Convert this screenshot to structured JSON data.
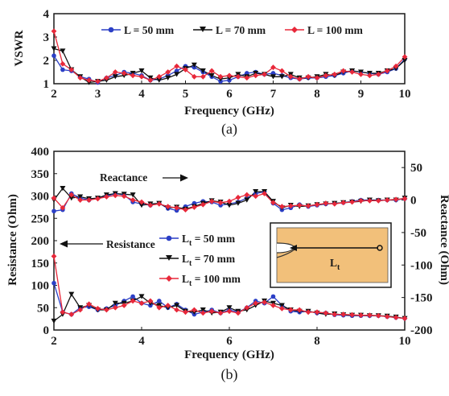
{
  "colors": {
    "blue": "#2b3fc6",
    "black": "#111111",
    "red": "#e8283a",
    "inset_fill": "#f2c07a"
  },
  "chart_data": [
    {
      "type": "line",
      "caption": "(a)",
      "xlabel": "Frequency (GHz)",
      "ylabel": "VSWR",
      "xlim": [
        2,
        10
      ],
      "ylim": [
        1,
        4
      ],
      "x_ticks": [
        "2",
        "3",
        "4",
        "5",
        "6",
        "7",
        "8",
        "9",
        "10"
      ],
      "y_ticks": [
        "1",
        "2",
        "3",
        "4"
      ],
      "legend_position": "top-center",
      "x": [
        2.0,
        2.2,
        2.4,
        2.6,
        2.8,
        3.0,
        3.2,
        3.4,
        3.6,
        3.8,
        4.0,
        4.2,
        4.4,
        4.6,
        4.8,
        5.0,
        5.2,
        5.4,
        5.6,
        5.8,
        6.0,
        6.2,
        6.4,
        6.6,
        6.8,
        7.0,
        7.2,
        7.4,
        7.6,
        7.8,
        8.0,
        8.2,
        8.4,
        8.6,
        8.8,
        9.0,
        9.2,
        9.4,
        9.6,
        9.8,
        10.0
      ],
      "series": [
        {
          "name": "L = 50 mm",
          "color": "#2b3fc6",
          "marker": "circle",
          "values": [
            2.2,
            1.6,
            1.55,
            1.3,
            1.2,
            1.05,
            1.25,
            1.35,
            1.5,
            1.45,
            1.35,
            1.15,
            1.2,
            1.35,
            1.55,
            1.75,
            1.7,
            1.5,
            1.3,
            1.1,
            1.15,
            1.3,
            1.45,
            1.5,
            1.4,
            1.45,
            1.35,
            1.25,
            1.2,
            1.25,
            1.25,
            1.3,
            1.35,
            1.45,
            1.55,
            1.5,
            1.45,
            1.4,
            1.5,
            1.65,
            2.05
          ]
        },
        {
          "name": "L = 70 mm",
          "color": "#111111",
          "marker": "triangle-down",
          "values": [
            2.5,
            2.4,
            1.6,
            1.3,
            1.05,
            1.1,
            1.15,
            1.3,
            1.35,
            1.45,
            1.55,
            1.25,
            1.15,
            1.25,
            1.4,
            1.65,
            1.8,
            1.55,
            1.35,
            1.2,
            1.25,
            1.4,
            1.3,
            1.45,
            1.4,
            1.3,
            1.3,
            1.4,
            1.25,
            1.25,
            1.3,
            1.4,
            1.35,
            1.5,
            1.55,
            1.5,
            1.45,
            1.45,
            1.55,
            1.65,
            2.0
          ]
        },
        {
          "name": "L = 100 mm",
          "color": "#e8283a",
          "marker": "diamond",
          "values": [
            3.25,
            1.85,
            1.6,
            1.25,
            1.15,
            1.1,
            1.25,
            1.5,
            1.45,
            1.35,
            1.3,
            1.15,
            1.3,
            1.5,
            1.75,
            1.6,
            1.3,
            1.3,
            1.55,
            1.3,
            1.35,
            1.3,
            1.25,
            1.35,
            1.4,
            1.7,
            1.55,
            1.3,
            1.2,
            1.3,
            1.25,
            1.35,
            1.4,
            1.55,
            1.5,
            1.4,
            1.35,
            1.4,
            1.55,
            1.75,
            2.15
          ]
        }
      ]
    },
    {
      "type": "line",
      "caption": "(b)",
      "xlabel": "Frequency (GHz)",
      "ylabel": "Resistance (Ohm)",
      "ylabel_right": "Reactance (Ohm)",
      "xlim": [
        2,
        10
      ],
      "ylim": [
        0,
        400
      ],
      "ylim_right": [
        -200,
        75
      ],
      "x_ticks": [
        "2",
        "4",
        "6",
        "8",
        "10"
      ],
      "y_ticks": [
        "0",
        "50",
        "100",
        "150",
        "200",
        "250",
        "300",
        "350",
        "400"
      ],
      "y_ticks_right": [
        "50",
        "0",
        "-50",
        "-100",
        "-150",
        "-200"
      ],
      "annotations": {
        "reactance": "Reactance",
        "resistance": "Resistance",
        "inset": "L"
      },
      "x": [
        2.0,
        2.2,
        2.4,
        2.6,
        2.8,
        3.0,
        3.2,
        3.4,
        3.6,
        3.8,
        4.0,
        4.2,
        4.4,
        4.6,
        4.8,
        5.0,
        5.2,
        5.4,
        5.6,
        5.8,
        6.0,
        6.2,
        6.4,
        6.6,
        6.8,
        7.0,
        7.2,
        7.4,
        7.6,
        7.8,
        8.0,
        8.2,
        8.4,
        8.6,
        8.8,
        9.0,
        9.2,
        9.4,
        9.6,
        9.8,
        10.0
      ],
      "series": [
        {
          "name": "L",
          "subscript": "t",
          "suffix": " = 50 mm",
          "color": "#2b3fc6",
          "marker": "circle",
          "resistance": [
            105,
            40,
            35,
            50,
            52,
            45,
            48,
            55,
            65,
            75,
            60,
            55,
            65,
            50,
            58,
            45,
            35,
            40,
            45,
            38,
            45,
            40,
            50,
            65,
            60,
            75,
            55,
            42,
            40,
            42,
            38,
            38,
            34,
            33,
            32,
            32,
            32,
            32,
            30,
            28,
            26
          ],
          "reactance": [
            -17,
            -15,
            10,
            3,
            0,
            3,
            6,
            10,
            8,
            -3,
            -6,
            -8,
            -5,
            -13,
            -16,
            -10,
            -5,
            -2,
            -3,
            -8,
            -6,
            -3,
            3,
            10,
            13,
            -5,
            -15,
            -12,
            -7,
            -10,
            -8,
            -6,
            -5,
            -4,
            -2,
            0,
            0,
            0,
            0,
            0,
            2
          ]
        },
        {
          "name": "L",
          "subscript": "t",
          "suffix": " = 70 mm",
          "color": "#111111",
          "marker": "triangle-down",
          "resistance": [
            20,
            35,
            80,
            50,
            55,
            45,
            45,
            60,
            60,
            65,
            75,
            60,
            55,
            50,
            55,
            42,
            40,
            45,
            38,
            40,
            50,
            42,
            45,
            55,
            65,
            60,
            55,
            45,
            42,
            42,
            38,
            35,
            36,
            34,
            33,
            33,
            32,
            32,
            31,
            29,
            26
          ],
          "reactance": [
            0,
            18,
            3,
            5,
            2,
            3,
            8,
            10,
            9,
            8,
            -8,
            -6,
            -5,
            -12,
            -11,
            -14,
            -10,
            -5,
            -1,
            -3,
            -8,
            -5,
            0,
            13,
            13,
            -2,
            -12,
            -8,
            -10,
            -9,
            -7,
            -6,
            -5,
            -4,
            -3,
            -2,
            0,
            -1,
            0,
            0,
            3
          ]
        },
        {
          "name": "L",
          "subscript": "t",
          "suffix": " = 100 mm",
          "color": "#e8283a",
          "marker": "diamond",
          "resistance": [
            165,
            40,
            35,
            45,
            58,
            48,
            45,
            50,
            55,
            65,
            60,
            65,
            50,
            55,
            45,
            40,
            45,
            38,
            42,
            38,
            42,
            38,
            50,
            60,
            62,
            55,
            48,
            45,
            45,
            40,
            40,
            38,
            35,
            35,
            34,
            33,
            33,
            32,
            30,
            28,
            26
          ],
          "reactance": [
            3,
            -12,
            8,
            0,
            0,
            2,
            5,
            7,
            6,
            0,
            -3,
            -8,
            -6,
            -10,
            -12,
            -15,
            -11,
            -7,
            -2,
            -4,
            -2,
            4,
            8,
            6,
            10,
            -4,
            -10,
            -9,
            -8,
            -9,
            -7,
            -5,
            -6,
            -4,
            -3,
            -1,
            -1,
            -1,
            0,
            1,
            2
          ]
        }
      ]
    }
  ]
}
